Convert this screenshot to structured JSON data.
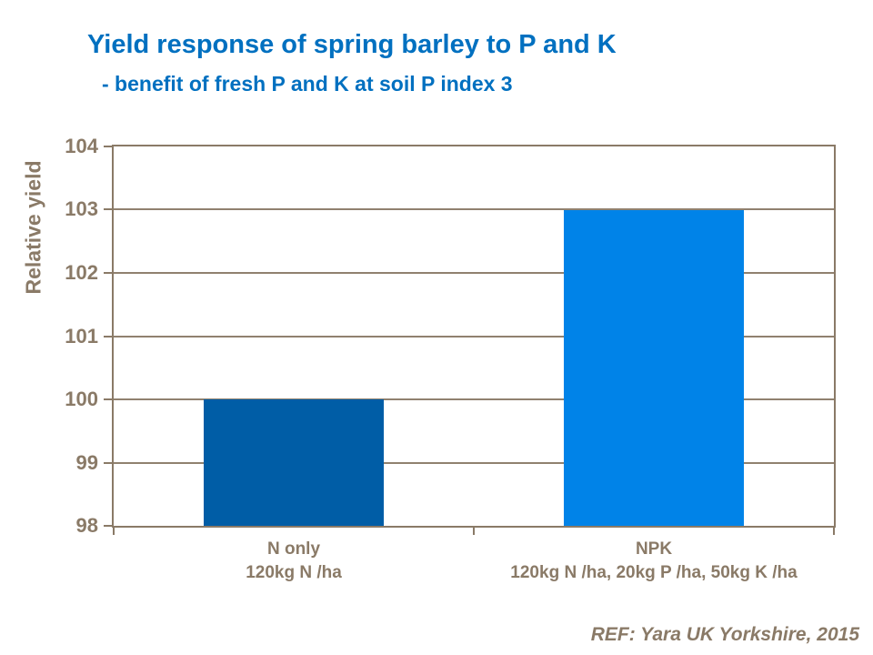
{
  "colors": {
    "title_blue": "#0070C0",
    "axis_brown": "#8A7A67",
    "bar_n_only": "#005DA6",
    "bar_npk": "#0083E8"
  },
  "chart_data": {
    "type": "bar",
    "title": "Yield response of spring barley to P and K",
    "subtitle": "- benefit of fresh P and K at soil P index 3",
    "ylabel": "Relative yield",
    "xlabel": "",
    "ylim": [
      98,
      104
    ],
    "yticks": [
      98,
      99,
      100,
      101,
      102,
      103,
      104
    ],
    "grid": true,
    "legend": false,
    "categories": [
      "N only",
      "NPK"
    ],
    "category_sublabels": [
      "120kg N /ha",
      "120kg N /ha, 20kg P /ha, 50kg K /ha"
    ],
    "values": [
      100,
      103
    ],
    "bar_colors": [
      "#005DA6",
      "#0083E8"
    ],
    "source": "REF: Yara UK Yorkshire, 2015"
  }
}
